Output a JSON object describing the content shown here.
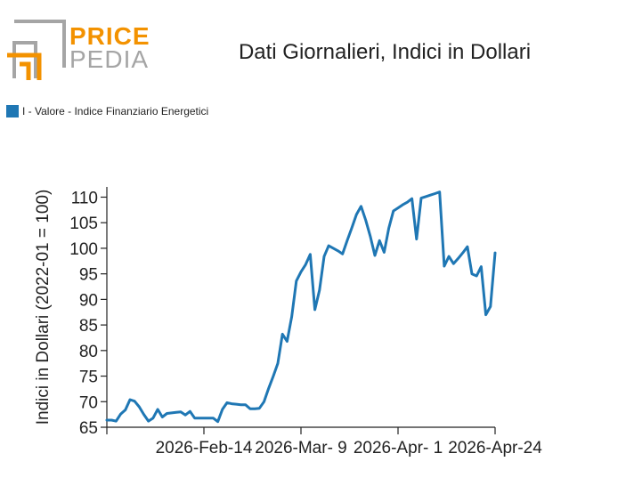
{
  "logo": {
    "word_top": "PRICE",
    "word_bottom": "PEDIA",
    "accent": "#f39200",
    "gray": "#a5a5a5"
  },
  "legend": {
    "label": "I - Valore - Indice Finanziario Energetici",
    "color": "#1f77b4"
  },
  "chart_data": {
    "type": "line",
    "title": "Dati Giornalieri, Indici in Dollari",
    "xlabel": "",
    "ylabel": "Indici in Dollari (2022-01 = 100)",
    "ylim": [
      65,
      112
    ],
    "yticks": [
      65,
      70,
      75,
      80,
      85,
      90,
      95,
      100,
      105,
      110
    ],
    "x_range": [
      0,
      84
    ],
    "x_ticks": [
      {
        "pos": 0,
        "label": ""
      },
      {
        "pos": 21,
        "label": "2026-Feb-14"
      },
      {
        "pos": 42,
        "label": "2026-Mar- 9"
      },
      {
        "pos": 63,
        "label": "2026-Apr- 1"
      },
      {
        "pos": 84,
        "label": "2026-Apr-24"
      }
    ],
    "grid": false,
    "series": [
      {
        "name": "I - Valore - Indice Finanziario Energetici",
        "color": "#1f77b4",
        "x": [
          0,
          1,
          2,
          3,
          4,
          5,
          6,
          7,
          8,
          9,
          10,
          11,
          12,
          13,
          14,
          15,
          16,
          17,
          18,
          19,
          20,
          21,
          22,
          23,
          24,
          25,
          26,
          27,
          28,
          29,
          30,
          31,
          32,
          33,
          34,
          35,
          36,
          37,
          38,
          39,
          40,
          41,
          42,
          43,
          44,
          45,
          46,
          47,
          48,
          49,
          50,
          51,
          52,
          53,
          54,
          55,
          56,
          57,
          58,
          59,
          60,
          61,
          62,
          63,
          64,
          65,
          66,
          67,
          68,
          69,
          70,
          71,
          72,
          73,
          74,
          75,
          76,
          77,
          78,
          79,
          80,
          81,
          82,
          83,
          84
        ],
        "values": [
          66.4,
          66.4,
          66.2,
          67.6,
          68.4,
          70.4,
          70.1,
          69.0,
          67.5,
          66.2,
          66.8,
          68.5,
          67.0,
          67.7,
          67.8,
          67.9,
          68.0,
          67.4,
          68.1,
          66.8,
          66.8,
          66.8,
          66.8,
          66.8,
          66.1,
          68.5,
          69.8,
          69.6,
          69.5,
          69.4,
          69.4,
          68.6,
          68.6,
          68.7,
          70.0,
          72.6,
          75.0,
          77.5,
          83.2,
          81.8,
          86.6,
          93.6,
          95.4,
          96.8,
          98.8,
          88.0,
          91.8,
          98.4,
          100.5,
          100.0,
          99.5,
          98.9,
          101.5,
          104.0,
          106.6,
          108.2,
          105.5,
          102.3,
          98.6,
          101.5,
          99.2,
          103.9,
          107.3,
          107.9,
          108.5,
          109.0,
          109.7,
          101.8,
          109.8,
          110.1,
          110.4,
          110.7,
          111.0,
          96.5,
          98.4,
          97.0,
          98.0,
          99.1,
          100.3,
          95.0,
          94.6,
          96.4,
          87.0,
          88.6,
          99.1
        ]
      }
    ]
  }
}
